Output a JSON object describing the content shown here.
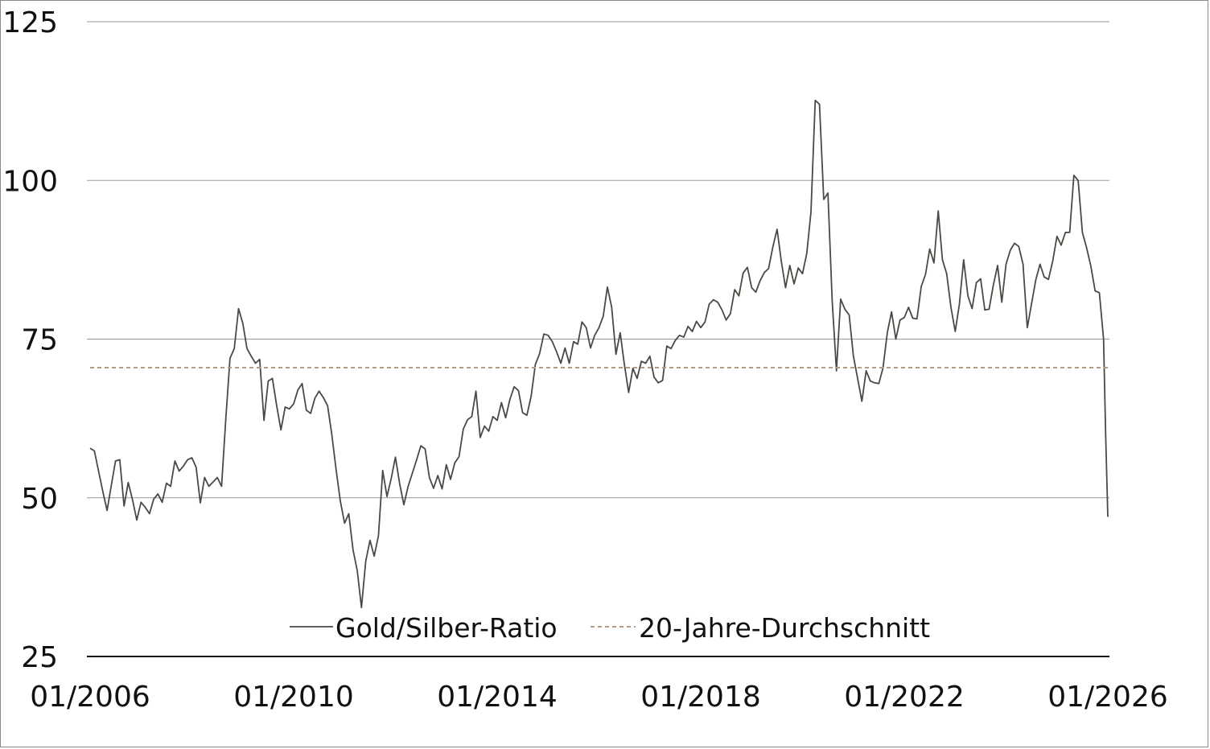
{
  "chart_data": {
    "type": "line",
    "title": "",
    "xlabel": "",
    "ylabel": "",
    "ylim": [
      25,
      125
    ],
    "y_ticks": [
      "25",
      "50",
      "75",
      "100",
      "125"
    ],
    "x_ticks": [
      "01/2006",
      "01/2010",
      "01/2014",
      "01/2018",
      "01/2022",
      "01/2026"
    ],
    "xlim": [
      "2006-01",
      "2026-01"
    ],
    "grid": "horizontal",
    "legend_placement": "bottom-center",
    "series": [
      {
        "name": "Gold/Silber-Ratio",
        "color": "#4a4a44",
        "style": "solid",
        "points": [
          [
            "2006-01",
            57.8
          ],
          [
            "2006-02",
            57.4
          ],
          [
            "2006-04",
            51.0
          ],
          [
            "2006-05",
            48.0
          ],
          [
            "2006-06",
            52.0
          ],
          [
            "2006-07",
            55.8
          ],
          [
            "2006-08",
            56.0
          ],
          [
            "2006-09",
            48.7
          ],
          [
            "2006-10",
            52.4
          ],
          [
            "2006-11",
            49.7
          ],
          [
            "2006-12",
            46.5
          ],
          [
            "2007-01",
            49.3
          ],
          [
            "2007-02",
            48.5
          ],
          [
            "2007-03",
            47.5
          ],
          [
            "2007-04",
            49.8
          ],
          [
            "2007-05",
            50.6
          ],
          [
            "2007-06",
            49.3
          ],
          [
            "2007-07",
            52.3
          ],
          [
            "2007-08",
            51.8
          ],
          [
            "2007-09",
            55.8
          ],
          [
            "2007-10",
            54.2
          ],
          [
            "2007-11",
            55.0
          ],
          [
            "2007-12",
            56.0
          ],
          [
            "2008-01",
            56.3
          ],
          [
            "2008-02",
            54.8
          ],
          [
            "2008-03",
            49.2
          ],
          [
            "2008-04",
            53.2
          ],
          [
            "2008-05",
            51.8
          ],
          [
            "2008-06",
            52.5
          ],
          [
            "2008-07",
            53.2
          ],
          [
            "2008-08",
            51.8
          ],
          [
            "2008-09",
            62.5
          ],
          [
            "2008-10",
            72.0
          ],
          [
            "2008-11",
            73.5
          ],
          [
            "2008-12",
            79.8
          ],
          [
            "2009-01",
            77.5
          ],
          [
            "2009-02",
            73.5
          ],
          [
            "2009-03",
            72.3
          ],
          [
            "2009-04",
            71.2
          ],
          [
            "2009-05",
            71.8
          ],
          [
            "2009-06",
            62.2
          ],
          [
            "2009-07",
            68.4
          ],
          [
            "2009-08",
            68.8
          ],
          [
            "2009-09",
            64.5
          ],
          [
            "2009-10",
            60.7
          ],
          [
            "2009-11",
            64.3
          ],
          [
            "2009-12",
            64.0
          ],
          [
            "2010-01",
            64.8
          ],
          [
            "2010-02",
            67.0
          ],
          [
            "2010-03",
            68.0
          ],
          [
            "2010-04",
            63.8
          ],
          [
            "2010-05",
            63.3
          ],
          [
            "2010-06",
            65.7
          ],
          [
            "2010-07",
            66.8
          ],
          [
            "2010-08",
            65.8
          ],
          [
            "2010-09",
            64.5
          ],
          [
            "2010-10",
            60.0
          ],
          [
            "2010-11",
            54.5
          ],
          [
            "2010-12",
            49.5
          ],
          [
            "2011-01",
            46.0
          ],
          [
            "2011-02",
            47.5
          ],
          [
            "2011-03",
            41.8
          ],
          [
            "2011-04",
            38.5
          ],
          [
            "2011-05",
            32.7
          ],
          [
            "2011-06",
            40.0
          ],
          [
            "2011-07",
            43.3
          ],
          [
            "2011-08",
            40.8
          ],
          [
            "2011-09",
            44.0
          ],
          [
            "2011-10",
            54.3
          ],
          [
            "2011-11",
            50.2
          ],
          [
            "2011-12",
            53.0
          ],
          [
            "2012-01",
            56.4
          ],
          [
            "2012-02",
            52.2
          ],
          [
            "2012-03",
            48.9
          ],
          [
            "2012-04",
            51.8
          ],
          [
            "2012-05",
            53.9
          ],
          [
            "2012-06",
            56.0
          ],
          [
            "2012-07",
            58.2
          ],
          [
            "2012-08",
            57.7
          ],
          [
            "2012-09",
            53.2
          ],
          [
            "2012-10",
            51.5
          ],
          [
            "2012-11",
            53.5
          ],
          [
            "2012-12",
            51.4
          ],
          [
            "2013-01",
            55.2
          ],
          [
            "2013-02",
            52.9
          ],
          [
            "2013-03",
            55.5
          ],
          [
            "2013-04",
            56.5
          ],
          [
            "2013-05",
            60.8
          ],
          [
            "2013-06",
            62.3
          ],
          [
            "2013-07",
            62.8
          ],
          [
            "2013-08",
            66.8
          ],
          [
            "2013-09",
            59.5
          ],
          [
            "2013-10",
            61.3
          ],
          [
            "2013-11",
            60.5
          ],
          [
            "2013-12",
            62.8
          ],
          [
            "2014-01",
            62.2
          ],
          [
            "2014-02",
            65.0
          ],
          [
            "2014-03",
            62.6
          ],
          [
            "2014-04",
            65.5
          ],
          [
            "2014-05",
            67.5
          ],
          [
            "2014-06",
            66.9
          ],
          [
            "2014-07",
            63.4
          ],
          [
            "2014-08",
            63.0
          ],
          [
            "2014-09",
            66.0
          ],
          [
            "2014-10",
            71.0
          ],
          [
            "2014-11",
            72.7
          ],
          [
            "2014-12",
            75.8
          ],
          [
            "2015-01",
            75.6
          ],
          [
            "2015-02",
            74.6
          ],
          [
            "2015-03",
            73.0
          ],
          [
            "2015-04",
            71.2
          ],
          [
            "2015-05",
            73.6
          ],
          [
            "2015-06",
            71.2
          ],
          [
            "2015-07",
            74.6
          ],
          [
            "2015-08",
            74.2
          ],
          [
            "2015-09",
            77.7
          ],
          [
            "2015-10",
            76.8
          ],
          [
            "2015-11",
            73.6
          ],
          [
            "2015-12",
            75.6
          ],
          [
            "2016-01",
            76.8
          ],
          [
            "2016-02",
            78.6
          ],
          [
            "2016-03",
            83.2
          ],
          [
            "2016-04",
            80.0
          ],
          [
            "2016-05",
            72.6
          ],
          [
            "2016-06",
            76.0
          ],
          [
            "2016-07",
            71.0
          ],
          [
            "2016-08",
            66.6
          ],
          [
            "2016-09",
            70.4
          ],
          [
            "2016-10",
            68.8
          ],
          [
            "2016-11",
            71.5
          ],
          [
            "2016-12",
            71.2
          ],
          [
            "2017-01",
            72.3
          ],
          [
            "2017-02",
            69.0
          ],
          [
            "2017-03",
            68.1
          ],
          [
            "2017-04",
            68.5
          ],
          [
            "2017-05",
            73.9
          ],
          [
            "2017-06",
            73.5
          ],
          [
            "2017-07",
            74.8
          ],
          [
            "2017-08",
            75.6
          ],
          [
            "2017-09",
            75.3
          ],
          [
            "2017-10",
            77.0
          ],
          [
            "2017-11",
            76.2
          ],
          [
            "2017-12",
            77.8
          ],
          [
            "2018-01",
            76.8
          ],
          [
            "2018-02",
            77.7
          ],
          [
            "2018-03",
            80.5
          ],
          [
            "2018-04",
            81.2
          ],
          [
            "2018-05",
            80.8
          ],
          [
            "2018-06",
            79.6
          ],
          [
            "2018-07",
            78.0
          ],
          [
            "2018-08",
            79.0
          ],
          [
            "2018-09",
            82.8
          ],
          [
            "2018-10",
            81.8
          ],
          [
            "2018-11",
            85.4
          ],
          [
            "2018-12",
            86.3
          ],
          [
            "2019-01",
            83.1
          ],
          [
            "2019-02",
            82.4
          ],
          [
            "2019-03",
            84.2
          ],
          [
            "2019-04",
            85.5
          ],
          [
            "2019-05",
            86.1
          ],
          [
            "2019-06",
            89.5
          ],
          [
            "2019-07",
            92.3
          ],
          [
            "2019-08",
            87.3
          ],
          [
            "2019-09",
            83.1
          ],
          [
            "2019-10",
            86.6
          ],
          [
            "2019-11",
            83.7
          ],
          [
            "2019-12",
            86.2
          ],
          [
            "2020-01",
            85.3
          ],
          [
            "2020-02",
            88.5
          ],
          [
            "2020-03",
            95.0
          ],
          [
            "2020-04",
            112.6
          ],
          [
            "2020-05",
            112.0
          ],
          [
            "2020-06",
            97.0
          ],
          [
            "2020-07",
            98.0
          ],
          [
            "2020-08",
            81.0
          ],
          [
            "2020-09",
            70.0
          ],
          [
            "2020-10",
            81.3
          ],
          [
            "2020-11",
            79.7
          ],
          [
            "2020-12",
            78.8
          ],
          [
            "2021-01",
            72.3
          ],
          [
            "2021-02",
            68.8
          ],
          [
            "2021-03",
            65.2
          ],
          [
            "2021-04",
            70.0
          ],
          [
            "2021-05",
            68.4
          ],
          [
            "2021-06",
            68.1
          ],
          [
            "2021-07",
            68.0
          ],
          [
            "2021-08",
            70.5
          ],
          [
            "2021-09",
            76.0
          ],
          [
            "2021-10",
            79.3
          ],
          [
            "2021-11",
            75.0
          ],
          [
            "2021-12",
            78.0
          ],
          [
            "2022-01",
            78.4
          ],
          [
            "2022-02",
            80.0
          ],
          [
            "2022-03",
            78.3
          ],
          [
            "2022-04",
            78.2
          ],
          [
            "2022-05",
            83.3
          ],
          [
            "2022-06",
            85.2
          ],
          [
            "2022-07",
            89.2
          ],
          [
            "2022-08",
            87.0
          ],
          [
            "2022-09",
            95.2
          ],
          [
            "2022-10",
            87.5
          ],
          [
            "2022-11",
            85.3
          ],
          [
            "2022-12",
            80.0
          ],
          [
            "2023-01",
            76.2
          ],
          [
            "2023-02",
            80.5
          ],
          [
            "2023-03",
            87.5
          ],
          [
            "2023-04",
            81.8
          ],
          [
            "2023-05",
            79.8
          ],
          [
            "2023-06",
            83.9
          ],
          [
            "2023-07",
            84.5
          ],
          [
            "2023-08",
            79.6
          ],
          [
            "2023-09",
            79.7
          ],
          [
            "2023-10",
            83.5
          ],
          [
            "2023-11",
            86.6
          ],
          [
            "2023-12",
            80.8
          ],
          [
            "2024-01",
            86.8
          ],
          [
            "2024-02",
            89.0
          ],
          [
            "2024-03",
            90.1
          ],
          [
            "2024-04",
            89.6
          ],
          [
            "2024-05",
            86.8
          ],
          [
            "2024-06",
            76.8
          ],
          [
            "2024-07",
            80.5
          ],
          [
            "2024-08",
            84.3
          ],
          [
            "2024-09",
            86.8
          ],
          [
            "2024-10",
            84.8
          ],
          [
            "2024-11",
            84.4
          ],
          [
            "2024-12",
            87.3
          ],
          [
            "2025-01",
            91.2
          ],
          [
            "2025-02",
            89.8
          ],
          [
            "2025-03",
            91.8
          ],
          [
            "2025-04",
            91.8
          ],
          [
            "2025-05",
            100.8
          ],
          [
            "2025-06",
            100.0
          ],
          [
            "2025-07",
            91.8
          ],
          [
            "2025-08",
            89.4
          ],
          [
            "2025-09",
            86.5
          ],
          [
            "2025-10",
            82.6
          ],
          [
            "2025-11",
            82.3
          ],
          [
            "2025-12",
            75.0
          ],
          [
            "2025-12-16",
            60.0
          ],
          [
            "2026-01",
            47.0
          ]
        ]
      },
      {
        "name": "20-Jahre-Durchschnitt",
        "color": "#b49a80",
        "style": "dashed",
        "points": [
          [
            "2006-01",
            70.5
          ],
          [
            "2026-01",
            70.5
          ]
        ]
      }
    ]
  }
}
